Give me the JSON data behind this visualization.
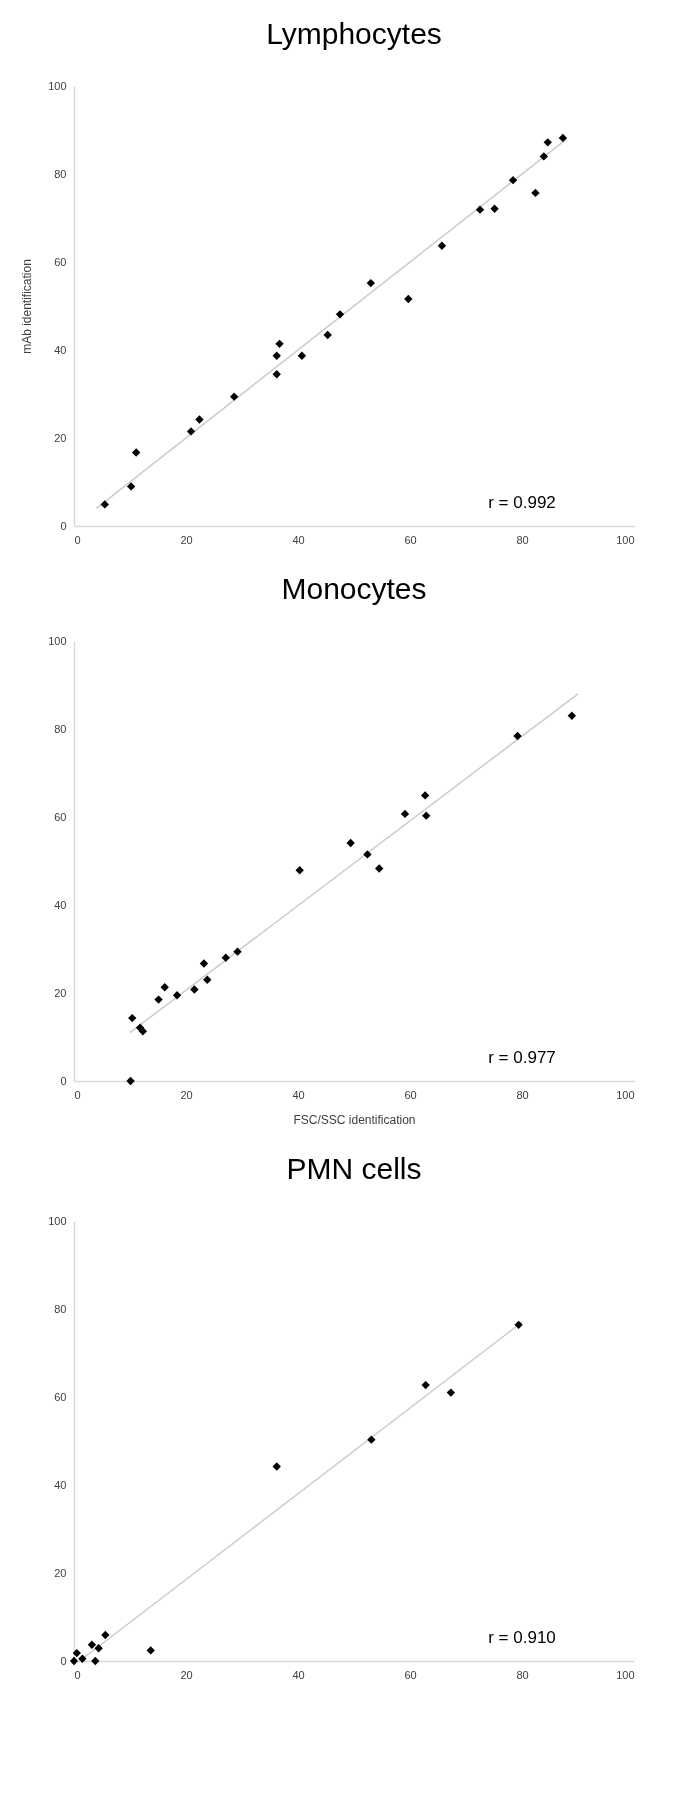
{
  "chart_data": [
    {
      "type": "scatter",
      "title": "Lymphocytes",
      "ylabel": "mAb identification",
      "xlim": [
        0,
        100
      ],
      "ylim": [
        0,
        100
      ],
      "xticks": [
        0,
        20,
        40,
        60,
        80,
        100
      ],
      "yticks": [
        0,
        20,
        40,
        60,
        80,
        100
      ],
      "annotations": [
        "r = 0.992"
      ],
      "series": [
        {
          "color": "#000000",
          "marker": "diamond",
          "x": [
            5.5,
            10.2,
            11.1,
            20.9,
            22.4,
            28.6,
            36.2,
            36.2,
            36.7,
            40.7,
            45.3,
            47.5,
            53.0,
            59.7,
            65.7,
            72.5,
            75.1,
            78.4,
            82.4,
            83.9,
            84.6,
            87.3
          ],
          "values": [
            4.9,
            9.0,
            16.7,
            21.5,
            24.2,
            29.4,
            34.5,
            38.7,
            41.4,
            38.7,
            43.4,
            48.1,
            55.2,
            51.6,
            63.7,
            71.9,
            72.1,
            78.6,
            75.7,
            84.0,
            87.2,
            88.2
          ]
        },
        {
          "type": "line",
          "color": "#cccccc",
          "x": [
            4,
            88
          ],
          "values": [
            4,
            88
          ]
        }
      ]
    },
    {
      "type": "scatter",
      "title": "Monocytes",
      "xlabel": "FSC/SSC identification",
      "xlim": [
        0,
        100
      ],
      "ylim": [
        0,
        100
      ],
      "xticks": [
        0,
        20,
        40,
        60,
        80,
        100
      ],
      "yticks": [
        0,
        20,
        40,
        60,
        80,
        100
      ],
      "annotations": [
        "r = 0.977"
      ],
      "series": [
        {
          "color": "#000000",
          "marker": "diamond",
          "x": [
            10.1,
            10.4,
            11.8,
            12.3,
            15.1,
            16.2,
            18.4,
            21.5,
            23.8,
            23.2,
            27.1,
            29.2,
            40.3,
            49.4,
            52.4,
            54.5,
            59.1,
            62.9,
            62.7,
            79.2,
            88.9
          ],
          "values": [
            0,
            14.3,
            12.1,
            11.3,
            18.5,
            21.3,
            19.5,
            20.8,
            23.0,
            26.7,
            28.0,
            29.4,
            47.9,
            54.1,
            51.5,
            48.3,
            60.7,
            60.3,
            64.9,
            78.4,
            83.0
          ]
        },
        {
          "type": "line",
          "color": "#cccccc",
          "x": [
            10,
            90
          ],
          "values": [
            11,
            88
          ]
        }
      ]
    },
    {
      "type": "scatter",
      "title": "PMN cells",
      "xlim": [
        0,
        100
      ],
      "ylim": [
        0,
        100
      ],
      "xticks": [
        0,
        20,
        40,
        60,
        80,
        100
      ],
      "yticks": [
        0,
        20,
        40,
        60,
        80,
        100
      ],
      "annotations": [
        "r = 0.910"
      ],
      "series": [
        {
          "color": "#000000",
          "marker": "diamond",
          "x": [
            0,
            1.5,
            0.5,
            3.2,
            3.8,
            4.4,
            5.6,
            13.7,
            36.2,
            53.1,
            62.8,
            67.3,
            79.4
          ],
          "values": [
            0,
            0.5,
            1.8,
            3.7,
            0,
            2.9,
            5.9,
            2.4,
            44.2,
            50.3,
            62.7,
            61.0,
            76.4
          ]
        },
        {
          "type": "line",
          "color": "#cccccc",
          "x": [
            1,
            80
          ],
          "values": [
            0,
            77
          ]
        }
      ]
    }
  ]
}
